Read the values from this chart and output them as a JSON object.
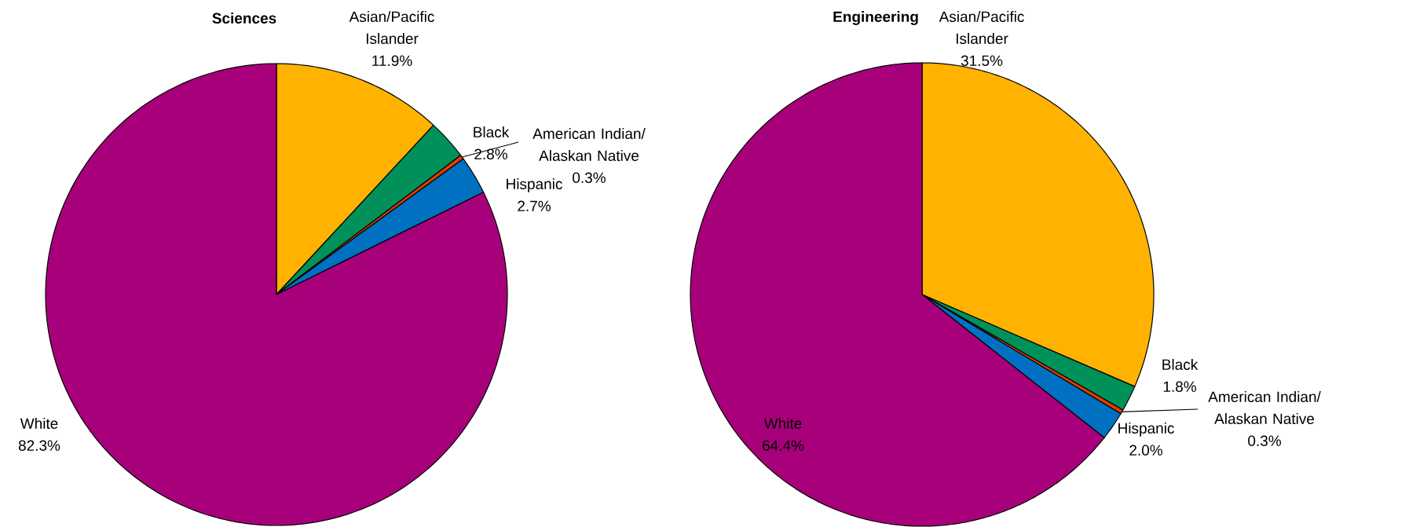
{
  "chart_data": [
    {
      "type": "pie",
      "title": "Sciences",
      "categories": [
        "Asian/Pacific Islander",
        "Black",
        "American Indian/ Alaskan Native",
        "Hispanic",
        "White"
      ],
      "values": [
        11.9,
        2.8,
        0.3,
        2.7,
        82.3
      ],
      "colors": [
        "#ffb300",
        "#00915a",
        "#e03c00",
        "#0070c0",
        "#a8007a"
      ],
      "value_labels": [
        "11.9%",
        "2.8%",
        "0.3%",
        "2.7%",
        "82.3%"
      ]
    },
    {
      "type": "pie",
      "title": "Engineering",
      "categories": [
        "Asian/Pacific Islander",
        "Black",
        "American Indian/ Alaskan Native",
        "Hispanic",
        "White"
      ],
      "values": [
        31.5,
        1.8,
        0.3,
        2.0,
        64.4
      ],
      "colors": [
        "#ffb300",
        "#00915a",
        "#e03c00",
        "#0070c0",
        "#a8007a"
      ],
      "value_labels": [
        "31.5%",
        "1.8%",
        "0.3%",
        "2.0%",
        "64.4%"
      ]
    }
  ]
}
